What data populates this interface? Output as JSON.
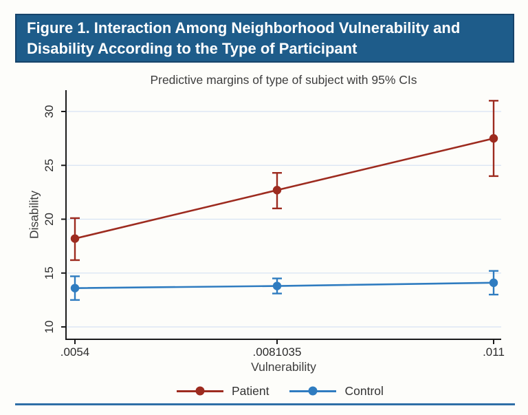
{
  "header": {
    "title": "Figure 1. Interaction Among Neighborhood Vulnerability and Disability According to the Type of Participant"
  },
  "colors": {
    "banner_background": "#1e5c8a",
    "banner_border": "#16436a",
    "banner_text": "#ffffff",
    "bottom_rule": "#2e6ea6",
    "patient": "#9d2b1f",
    "control": "#2f7cc0",
    "gridline": "#d7e3f3",
    "axis": "#1a1a1a",
    "tick_text": "#2b2b2b"
  },
  "chart_data": {
    "type": "line",
    "title": "Predictive margins of type of subject with 95% CIs",
    "xlabel": "Vulnerability",
    "ylabel": "Disability",
    "x": [
      0.0054,
      0.0081035,
      0.011
    ],
    "x_tick_labels": [
      ".0054",
      ".0081035",
      ".011"
    ],
    "y_ticks": [
      10,
      15,
      20,
      25,
      30
    ],
    "ylim": [
      10,
      30
    ],
    "grid": true,
    "legend_position": "bottom",
    "error_bars": "95% CI",
    "series": [
      {
        "name": "Patient",
        "color": "#9d2b1f",
        "values": [
          18.2,
          22.7,
          27.5
        ],
        "ci_low": [
          16.2,
          21.0,
          24.0
        ],
        "ci_high": [
          20.1,
          24.3,
          31.0
        ]
      },
      {
        "name": "Control",
        "color": "#2f7cc0",
        "values": [
          13.6,
          13.8,
          14.1
        ],
        "ci_low": [
          12.5,
          13.1,
          13.0
        ],
        "ci_high": [
          14.7,
          14.5,
          15.2
        ]
      }
    ]
  }
}
